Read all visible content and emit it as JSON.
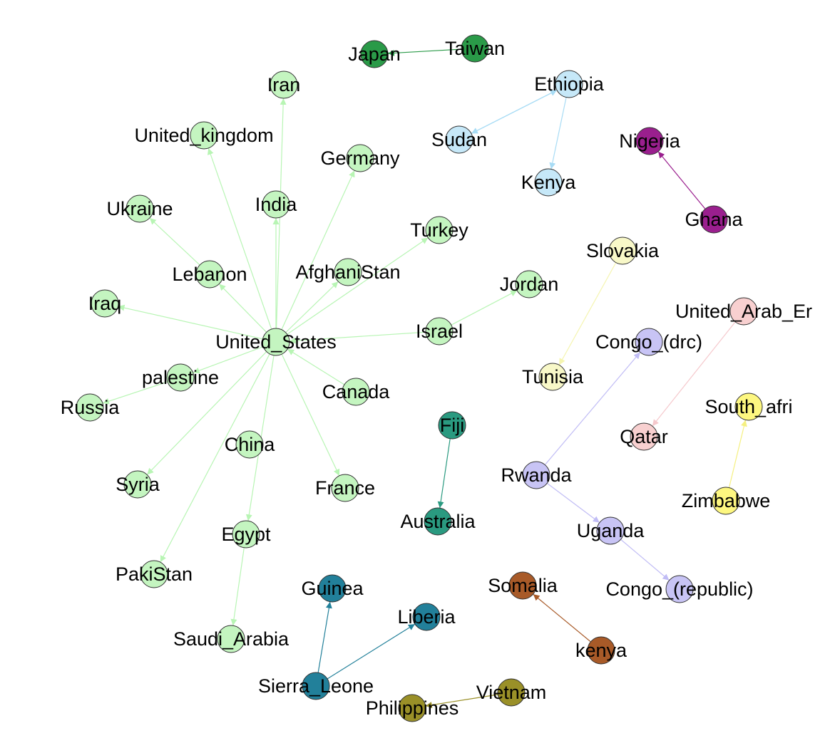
{
  "nodes": [
    {
      "id": "japan",
      "label": "Japan",
      "color": "#2a9a48"
    },
    {
      "id": "taiwan",
      "label": "Taiwan",
      "color": "#2a9a48"
    },
    {
      "id": "ethiopia",
      "label": "Ethiopia",
      "color": "#c6e8f8"
    },
    {
      "id": "sudan",
      "label": "Sudan",
      "color": "#c6e8f8"
    },
    {
      "id": "kenya_cap",
      "label": "Kenya",
      "color": "#c6e8f8"
    },
    {
      "id": "nigeria",
      "label": "Nigeria",
      "color": "#9a1f8e"
    },
    {
      "id": "ghana",
      "label": "Ghana",
      "color": "#9a1f8e"
    },
    {
      "id": "iran",
      "label": "Iran",
      "color": "#c4f5c0"
    },
    {
      "id": "united_kingdom",
      "label": "United_kingdom",
      "color": "#c4f5c0"
    },
    {
      "id": "germany",
      "label": "Germany",
      "color": "#c4f5c0"
    },
    {
      "id": "ukraine",
      "label": "Ukraine",
      "color": "#c4f5c0"
    },
    {
      "id": "india",
      "label": "India",
      "color": "#c4f5c0"
    },
    {
      "id": "turkey",
      "label": "Turkey",
      "color": "#c4f5c0"
    },
    {
      "id": "lebanon",
      "label": "Lebanon",
      "color": "#c4f5c0"
    },
    {
      "id": "afghanistan",
      "label": "AfghaniStan",
      "color": "#c4f5c0"
    },
    {
      "id": "jordan",
      "label": "Jordan",
      "color": "#c4f5c0"
    },
    {
      "id": "iraq",
      "label": "Iraq",
      "color": "#c4f5c0"
    },
    {
      "id": "united_states",
      "label": "United_States",
      "color": "#c4f5c0"
    },
    {
      "id": "israel",
      "label": "Israel",
      "color": "#c4f5c0"
    },
    {
      "id": "palestine",
      "label": "palestine",
      "color": "#c4f5c0"
    },
    {
      "id": "canada",
      "label": "Canada",
      "color": "#c4f5c0"
    },
    {
      "id": "russia",
      "label": "Russia",
      "color": "#c4f5c0"
    },
    {
      "id": "china",
      "label": "China",
      "color": "#c4f5c0"
    },
    {
      "id": "syria",
      "label": "Syria",
      "color": "#c4f5c0"
    },
    {
      "id": "france",
      "label": "France",
      "color": "#c4f5c0"
    },
    {
      "id": "egypt",
      "label": "Egypt",
      "color": "#c4f5c0"
    },
    {
      "id": "pakistan",
      "label": "PakiStan",
      "color": "#c4f5c0"
    },
    {
      "id": "saudi_arabia",
      "label": "Saudi_Arabia",
      "color": "#c4f5c0"
    },
    {
      "id": "slovakia",
      "label": "Slovakia",
      "color": "#f8f8c8"
    },
    {
      "id": "tunisia",
      "label": "Tunisia",
      "color": "#f8f8c8"
    },
    {
      "id": "uae",
      "label": "United_Arab_Er",
      "color": "#f8d0d0"
    },
    {
      "id": "qatar",
      "label": "Qatar",
      "color": "#f8d0d0"
    },
    {
      "id": "congo_drc",
      "label": "Congo_(drc)",
      "color": "#c8c4f5"
    },
    {
      "id": "rwanda",
      "label": "Rwanda",
      "color": "#c8c4f5"
    },
    {
      "id": "uganda",
      "label": "Uganda",
      "color": "#c8c4f5"
    },
    {
      "id": "congo_rep",
      "label": "Congo_(republic)",
      "color": "#c8c4f5"
    },
    {
      "id": "south_africa",
      "label": "South_afri",
      "color": "#fdf780"
    },
    {
      "id": "zimbabwe",
      "label": "Zimbabwe",
      "color": "#fdf780"
    },
    {
      "id": "fiji",
      "label": "Fiji",
      "color": "#2a9a80"
    },
    {
      "id": "australia",
      "label": "Australia",
      "color": "#2a9a80"
    },
    {
      "id": "guinea",
      "label": "Guinea",
      "color": "#22809a"
    },
    {
      "id": "liberia",
      "label": "Liberia",
      "color": "#22809a"
    },
    {
      "id": "sierra_leone",
      "label": "Sierra_Leone",
      "color": "#22809a"
    },
    {
      "id": "somalia",
      "label": "Somalia",
      "color": "#a85a28"
    },
    {
      "id": "kenya_low",
      "label": "kenya",
      "color": "#a85a28"
    },
    {
      "id": "vietnam",
      "label": "Vietnam",
      "color": "#9a9028"
    },
    {
      "id": "philippines",
      "label": "Philippines",
      "color": "#9a9028"
    }
  ],
  "edges": [
    {
      "source": "taiwan",
      "target": "japan",
      "color": "#2a9a48"
    },
    {
      "source": "ethiopia",
      "target": "sudan",
      "color": "#a8dcf5"
    },
    {
      "source": "sudan",
      "target": "ethiopia",
      "color": "#a8dcf5"
    },
    {
      "source": "ethiopia",
      "target": "kenya_cap",
      "color": "#a8dcf5"
    },
    {
      "source": "ghana",
      "target": "nigeria",
      "color": "#9a1f8e"
    },
    {
      "source": "united_states",
      "target": "iran",
      "color": "#b8f5b4"
    },
    {
      "source": "united_states",
      "target": "united_kingdom",
      "color": "#b8f5b4"
    },
    {
      "source": "united_states",
      "target": "germany",
      "color": "#b8f5b4"
    },
    {
      "source": "lebanon",
      "target": "ukraine",
      "color": "#b8f5b4"
    },
    {
      "source": "united_states",
      "target": "india",
      "color": "#b8f5b4"
    },
    {
      "source": "united_states",
      "target": "turkey",
      "color": "#b8f5b4"
    },
    {
      "source": "united_states",
      "target": "lebanon",
      "color": "#b8f5b4"
    },
    {
      "source": "united_states",
      "target": "afghanistan",
      "color": "#b8f5b4"
    },
    {
      "source": "israel",
      "target": "jordan",
      "color": "#b8f5b4"
    },
    {
      "source": "united_states",
      "target": "iraq",
      "color": "#b8f5b4"
    },
    {
      "source": "israel",
      "target": "united_states",
      "color": "#b8f5b4"
    },
    {
      "source": "united_states",
      "target": "palestine",
      "color": "#b8f5b4"
    },
    {
      "source": "canada",
      "target": "united_states",
      "color": "#b8f5b4"
    },
    {
      "source": "palestine",
      "target": "russia",
      "color": "#b8f5b4"
    },
    {
      "source": "united_states",
      "target": "syria",
      "color": "#b8f5b4"
    },
    {
      "source": "united_states",
      "target": "france",
      "color": "#b8f5b4"
    },
    {
      "source": "united_states",
      "target": "egypt",
      "color": "#b8f5b4"
    },
    {
      "source": "united_states",
      "target": "pakistan",
      "color": "#b8f5b4"
    },
    {
      "source": "egypt",
      "target": "saudi_arabia",
      "color": "#b8f5b4"
    },
    {
      "source": "slovakia",
      "target": "tunisia",
      "color": "#f5f5b0"
    },
    {
      "source": "uae",
      "target": "qatar",
      "color": "#f5c8cc"
    },
    {
      "source": "rwanda",
      "target": "congo_drc",
      "color": "#c0bcf5"
    },
    {
      "source": "rwanda",
      "target": "uganda",
      "color": "#c0bcf5"
    },
    {
      "source": "uganda",
      "target": "congo_rep",
      "color": "#c0bcf5"
    },
    {
      "source": "zimbabwe",
      "target": "south_africa",
      "color": "#f5f080"
    },
    {
      "source": "fiji",
      "target": "australia",
      "color": "#2a9a80"
    },
    {
      "source": "sierra_leone",
      "target": "guinea",
      "color": "#22809a"
    },
    {
      "source": "sierra_leone",
      "target": "liberia",
      "color": "#22809a"
    },
    {
      "source": "kenya_low",
      "target": "somalia",
      "color": "#a85a28"
    },
    {
      "source": "vietnam",
      "target": "philippines",
      "color": "#9a9028"
    }
  ]
}
